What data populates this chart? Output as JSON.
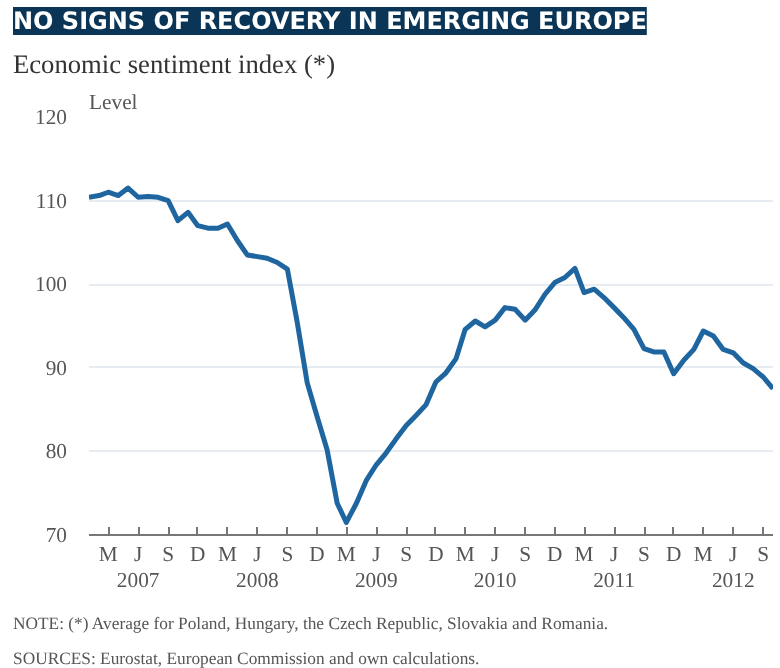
{
  "chart_data": {
    "type": "line",
    "title": "NO SIGNS OF RECOVERY IN EMERGING EUROPE",
    "subtitle": "Economic sentiment index (*)",
    "ylabel": "Level",
    "x": [
      "2007-01",
      "2007-02",
      "2007-03",
      "2007-04",
      "2007-05",
      "2007-06",
      "2007-07",
      "2007-08",
      "2007-09",
      "2007-10",
      "2007-11",
      "2007-12",
      "2008-01",
      "2008-02",
      "2008-03",
      "2008-04",
      "2008-05",
      "2008-06",
      "2008-07",
      "2008-08",
      "2008-09",
      "2008-10",
      "2008-11",
      "2008-12",
      "2009-01",
      "2009-02",
      "2009-03",
      "2009-04",
      "2009-05",
      "2009-06",
      "2009-07",
      "2009-08",
      "2009-09",
      "2009-10",
      "2009-11",
      "2009-12",
      "2010-01",
      "2010-02",
      "2010-03",
      "2010-04",
      "2010-05",
      "2010-06",
      "2010-07",
      "2010-08",
      "2010-09",
      "2010-10",
      "2010-11",
      "2010-12",
      "2011-01",
      "2011-02",
      "2011-03",
      "2011-04",
      "2011-05",
      "2011-06",
      "2011-07",
      "2011-08",
      "2011-09",
      "2011-10",
      "2011-11",
      "2011-12",
      "2012-01",
      "2012-02",
      "2012-03",
      "2012-04",
      "2012-05",
      "2012-06",
      "2012-07",
      "2012-08",
      "2012-09",
      "2012-10"
    ],
    "series": [
      {
        "color": "#1f66a0",
        "values": [
          110.4,
          110.6,
          111.0,
          110.6,
          111.5,
          110.4,
          110.5,
          110.4,
          110.0,
          107.6,
          108.6,
          107.0,
          106.7,
          106.7,
          107.2,
          105.2,
          103.5,
          103.3,
          103.1,
          102.6,
          101.8,
          95.5,
          88.2,
          84.2,
          80.2,
          73.8,
          71.5,
          73.8,
          76.5,
          78.4,
          79.8,
          81.5,
          83.1,
          84.3,
          85.6,
          88.3,
          89.4,
          91.1,
          94.6,
          95.6,
          94.9,
          95.7,
          97.2,
          97.0,
          95.7,
          96.9,
          98.8,
          100.2,
          100.8,
          101.9,
          99.0,
          99.4,
          98.4,
          97.2,
          96.0,
          94.6,
          92.3,
          91.9,
          91.9,
          89.3,
          90.9,
          92.2,
          94.4,
          93.8,
          92.2,
          91.8,
          90.6,
          89.9,
          88.9,
          87.5
        ]
      }
    ],
    "xlim": [
      "2007-01",
      "2012-10"
    ],
    "ylim": [
      70,
      120
    ],
    "yticks": [
      70,
      80,
      90,
      100,
      110,
      120
    ],
    "xticks": [
      {
        "value": "2007-03",
        "label": "M"
      },
      {
        "value": "2007-06",
        "label": "J\n2007"
      },
      {
        "value": "2007-09",
        "label": "S"
      },
      {
        "value": "2007-12",
        "label": "D"
      },
      {
        "value": "2008-03",
        "label": "M"
      },
      {
        "value": "2008-06",
        "label": "J\n2008"
      },
      {
        "value": "2008-09",
        "label": "S"
      },
      {
        "value": "2008-12",
        "label": "D"
      },
      {
        "value": "2009-03",
        "label": "M"
      },
      {
        "value": "2009-06",
        "label": "J\n2009"
      },
      {
        "value": "2009-09",
        "label": "S"
      },
      {
        "value": "2009-12",
        "label": "D"
      },
      {
        "value": "2010-03",
        "label": "M"
      },
      {
        "value": "2010-06",
        "label": "J\n2010"
      },
      {
        "value": "2010-09",
        "label": "S"
      },
      {
        "value": "2010-12",
        "label": "D"
      },
      {
        "value": "2011-03",
        "label": "M"
      },
      {
        "value": "2011-06",
        "label": "J\n2011"
      },
      {
        "value": "2011-09",
        "label": "S"
      },
      {
        "value": "2011-12",
        "label": "D"
      },
      {
        "value": "2012-03",
        "label": "M"
      },
      {
        "value": "2012-06",
        "label": "J\n2012"
      },
      {
        "value": "2012-09",
        "label": "S"
      }
    ],
    "grid": "y",
    "line_style": "solid",
    "annotations": [
      "NOTE: (*) Average for Poland, Hungary, the Czech Republic, Slovakia and Romania.",
      "SOURCES: Eurostat, European Commission and own calculations."
    ]
  }
}
